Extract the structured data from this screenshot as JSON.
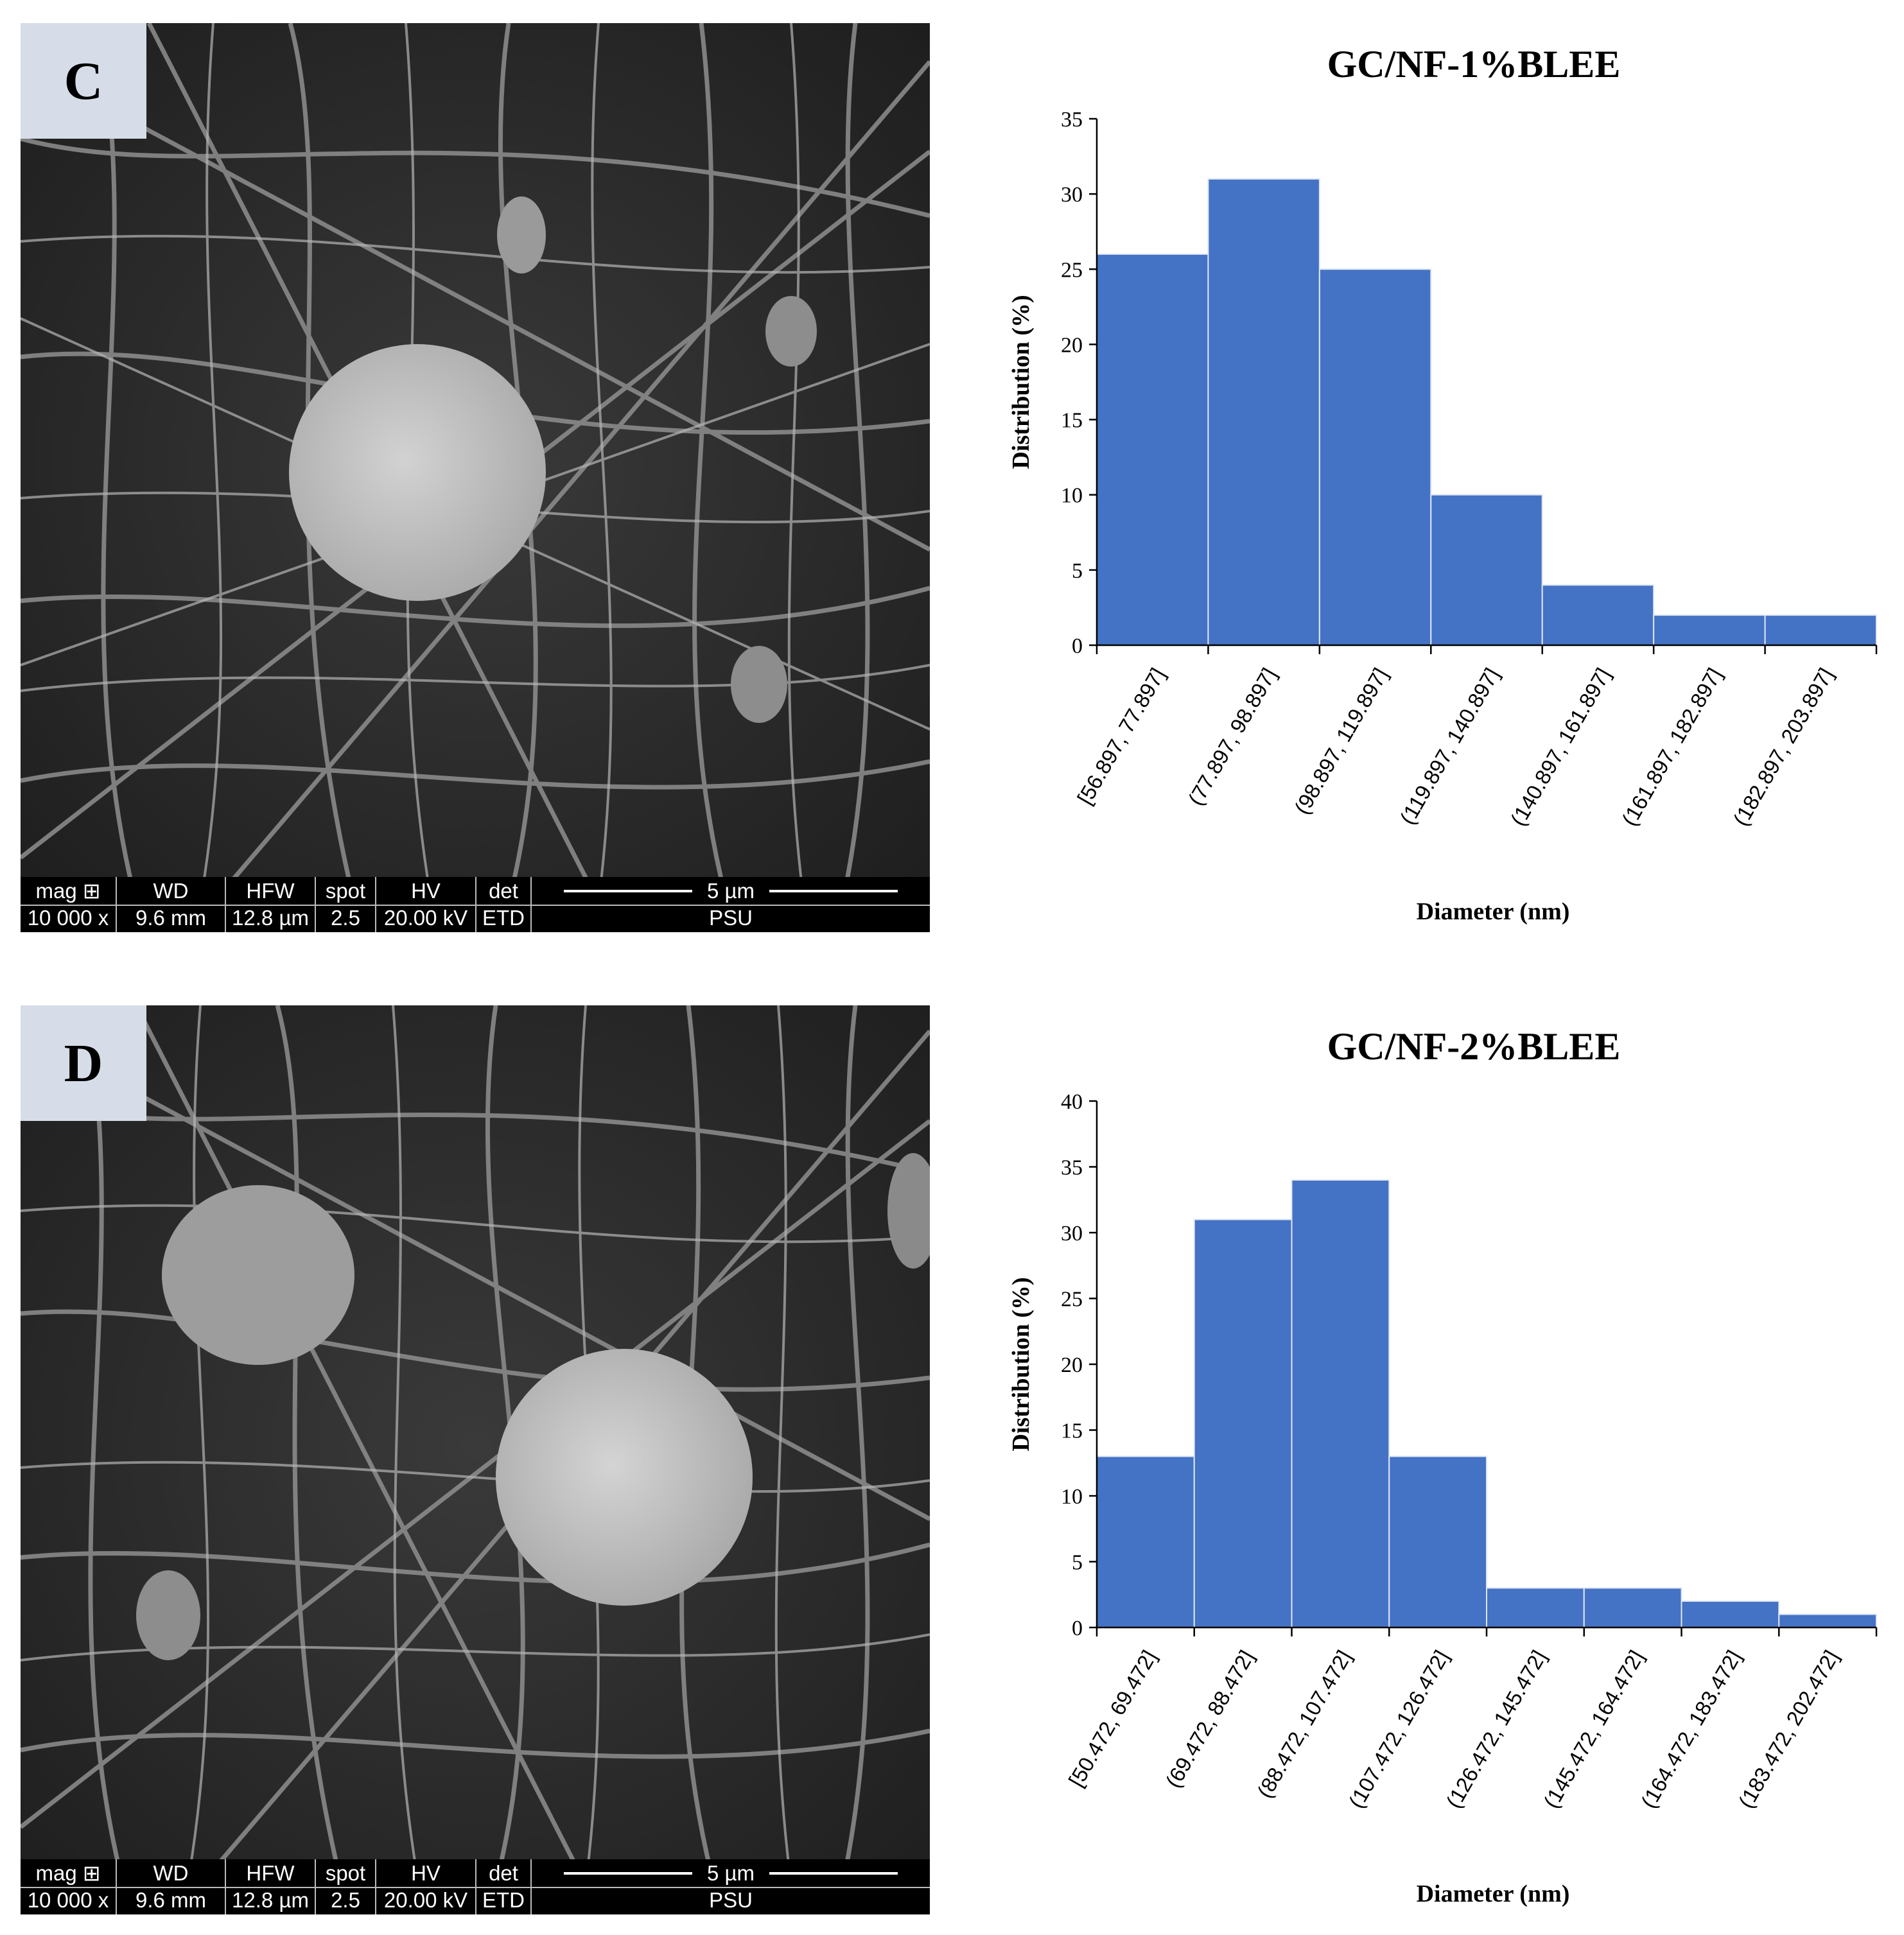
{
  "panels": [
    {
      "letter": "C",
      "databar": {
        "mag_label": "mag ⊞",
        "mag_value": "10 000 x",
        "wd_label": "WD",
        "wd_value": "9.6 mm",
        "hfw_label": "HFW",
        "hfw_value": "12.8 µm",
        "spot_label": "spot",
        "spot_value": "2.5",
        "hv_label": "HV",
        "hv_value": "20.00 kV",
        "det_label": "det",
        "det_value": "ETD",
        "scale_label": "5 µm",
        "institution": "PSU"
      }
    },
    {
      "letter": "D",
      "databar": {
        "mag_label": "mag ⊞",
        "mag_value": "10 000 x",
        "wd_label": "WD",
        "wd_value": "9.6 mm",
        "hfw_label": "HFW",
        "hfw_value": "12.8 µm",
        "spot_label": "spot",
        "spot_value": "2.5",
        "hv_label": "HV",
        "hv_value": "20.00 kV",
        "det_label": "det",
        "det_value": "ETD",
        "scale_label": "5 µm",
        "institution": "PSU"
      }
    }
  ],
  "chart_data": [
    {
      "type": "bar",
      "title": "GC/NF-1%BLEE",
      "xlabel": "Diameter (nm)",
      "ylabel": "Distribution (%)",
      "ylim": [
        0,
        35
      ],
      "yticks": [
        0,
        5,
        10,
        15,
        20,
        25,
        30,
        35
      ],
      "categories": [
        "[56.897, 77.897]",
        "(77.897, 98.897]",
        "(98.897, 119.897]",
        "(119.897, 140.897]",
        "(140.897, 161.897]",
        "(161.897, 182.897]",
        "(182.897, 203.897]"
      ],
      "values": [
        26,
        31,
        25,
        10,
        4,
        2,
        2
      ],
      "bar_color": "#4472c4",
      "grid": false
    },
    {
      "type": "bar",
      "title": "GC/NF-2%BLEE",
      "xlabel": "Diameter (nm)",
      "ylabel": "Distribution (%)",
      "ylim": [
        0,
        40
      ],
      "yticks": [
        0,
        5,
        10,
        15,
        20,
        25,
        30,
        35,
        40
      ],
      "categories": [
        "[50.472, 69.472]",
        "(69.472, 88.472]",
        "(88.472, 107.472]",
        "(107.472, 126.472]",
        "(126.472, 145.472]",
        "(145.472, 164.472]",
        "(164.472, 183.472]",
        "(183.472, 202.472]"
      ],
      "values": [
        13,
        31,
        34,
        13,
        3,
        3,
        2,
        1
      ],
      "bar_color": "#4472c4",
      "grid": false
    }
  ]
}
